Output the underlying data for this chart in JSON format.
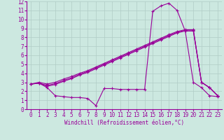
{
  "bg_color": "#cce8e0",
  "grid_color": "#b0ccc6",
  "line_color": "#990099",
  "marker": "+",
  "xlabel": "Windchill (Refroidissement éolien,°C)",
  "xlim": [
    -0.5,
    23.5
  ],
  "ylim": [
    0,
    12
  ],
  "xticks": [
    0,
    1,
    2,
    3,
    4,
    5,
    6,
    7,
    8,
    9,
    10,
    11,
    12,
    13,
    14,
    15,
    16,
    17,
    18,
    19,
    20,
    21,
    22,
    23
  ],
  "yticks": [
    0,
    1,
    2,
    3,
    4,
    5,
    6,
    7,
    8,
    9,
    10,
    11,
    12
  ],
  "line1_x": [
    0,
    1,
    2,
    3,
    4,
    5,
    6,
    7,
    8,
    9,
    10,
    11,
    12,
    13,
    14,
    15,
    16,
    17,
    18,
    19,
    20,
    21,
    22,
    23
  ],
  "line1_y": [
    2.8,
    2.9,
    2.55,
    2.75,
    3.1,
    3.4,
    3.8,
    4.1,
    4.5,
    4.9,
    5.3,
    5.7,
    6.1,
    6.5,
    6.9,
    7.3,
    7.7,
    8.1,
    8.5,
    8.7,
    8.7,
    3.0,
    2.4,
    1.5
  ],
  "line2_x": [
    0,
    1,
    2,
    3,
    4,
    5,
    6,
    7,
    8,
    9,
    10,
    11,
    12,
    13,
    14,
    15,
    16,
    17,
    18,
    19,
    20,
    21,
    22,
    23
  ],
  "line2_y": [
    2.8,
    2.9,
    2.65,
    2.85,
    3.2,
    3.5,
    3.9,
    4.2,
    4.6,
    5.0,
    5.4,
    5.8,
    6.2,
    6.6,
    7.0,
    7.4,
    7.8,
    8.2,
    8.55,
    8.8,
    8.8,
    3.0,
    2.4,
    1.5
  ],
  "line3_x": [
    0,
    1,
    2,
    3,
    4,
    5,
    6,
    7,
    8,
    9,
    10,
    11,
    12,
    13,
    14,
    15,
    16,
    17,
    18,
    19,
    20,
    21,
    22,
    23
  ],
  "line3_y": [
    2.8,
    3.0,
    2.8,
    3.0,
    3.35,
    3.65,
    4.0,
    4.3,
    4.7,
    5.1,
    5.5,
    5.9,
    6.3,
    6.7,
    7.1,
    7.5,
    7.9,
    8.3,
    8.65,
    8.85,
    8.85,
    3.0,
    2.4,
    1.5
  ],
  "line4_x": [
    0,
    1,
    2,
    3,
    4,
    5,
    6,
    7,
    8,
    9,
    10,
    11,
    12,
    13,
    14,
    15,
    16,
    17,
    18,
    19,
    20,
    21,
    22,
    23
  ],
  "line4_y": [
    2.8,
    2.9,
    2.4,
    1.5,
    1.4,
    1.3,
    1.3,
    1.2,
    0.4,
    2.3,
    2.3,
    2.2,
    2.2,
    2.2,
    2.2,
    10.9,
    11.5,
    11.8,
    11.0,
    8.7,
    3.0,
    2.4,
    1.5,
    1.4
  ]
}
